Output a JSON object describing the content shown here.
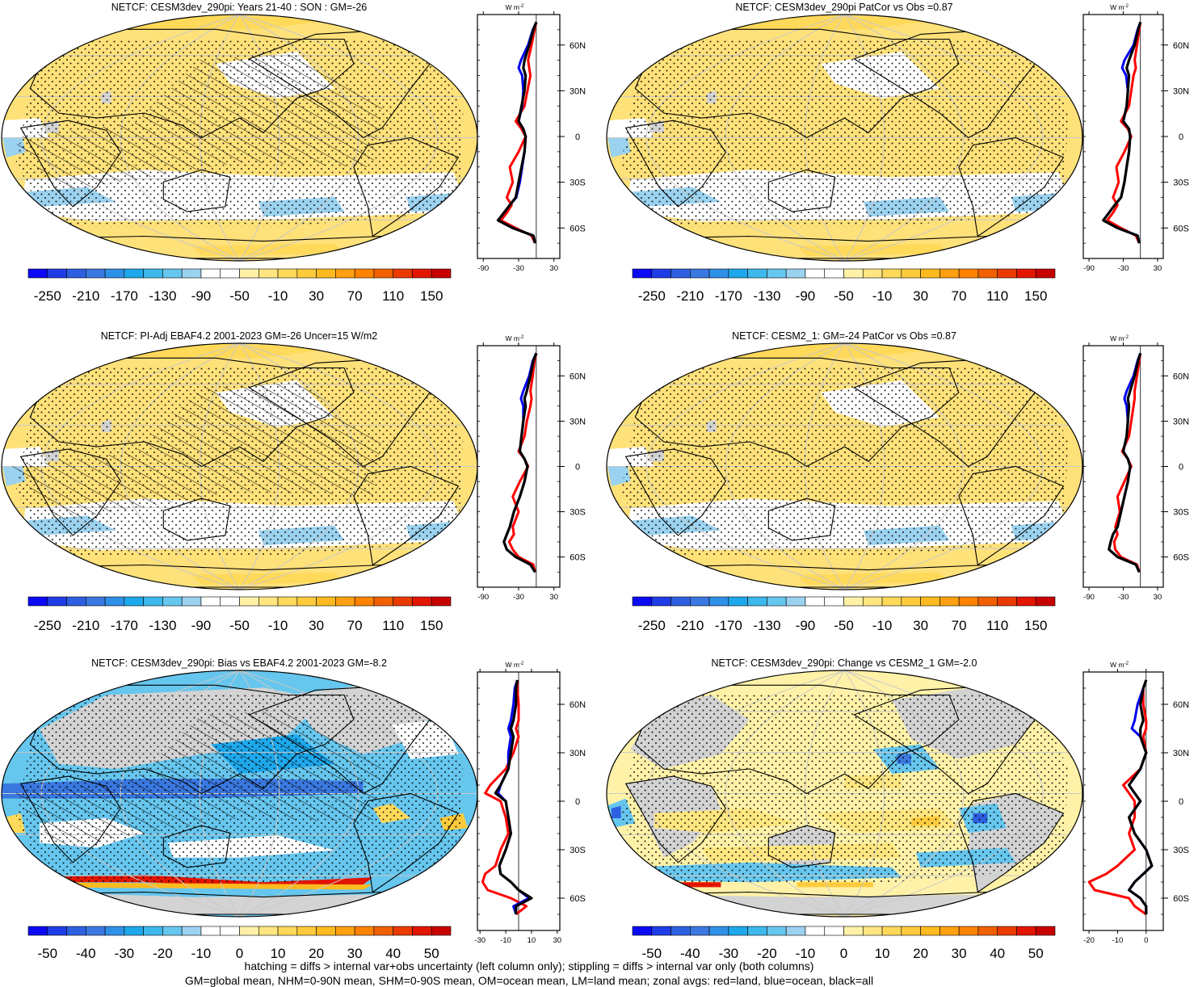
{
  "figure": {
    "footnotes": [
      "hatching = diffs > internal var+obs uncertainty (left column only); stippling = diffs > internal var only (both columns)",
      "GM=global mean, NHM=0-90N mean, SHM=0-90S mean, OM=ocean mean, LM=land mean; zonal avgs: red=land, blue=ocean, black=all"
    ]
  },
  "colorscales": {
    "full": {
      "colors": [
        "#0a0af5",
        "#1f3de6",
        "#2e5fe0",
        "#3a78e0",
        "#2f90e8",
        "#1ea8ec",
        "#3cb8ec",
        "#66c6ee",
        "#9bd2ef",
        "#ffffff",
        "#ffffff",
        "#fff2a8",
        "#ffe680",
        "#ffd95a",
        "#ffcb3c",
        "#ffba1f",
        "#ffa010",
        "#ff8200",
        "#f06000",
        "#ea3a00",
        "#e21500",
        "#c80000"
      ],
      "labels": [
        "-250",
        "-210",
        "-170",
        "-130",
        "-90",
        "-50",
        "-10",
        "30",
        "70",
        "110",
        "150"
      ]
    },
    "diff": {
      "colors": [
        "#0a0af5",
        "#1f3de6",
        "#2e5fe0",
        "#3a78e0",
        "#2f90e8",
        "#1ea8ec",
        "#3cb8ec",
        "#66c6ee",
        "#9bd2ef",
        "#ffffff",
        "#ffffff",
        "#fff2a8",
        "#ffe680",
        "#ffd95a",
        "#ffcb3c",
        "#ffba1f",
        "#ffa010",
        "#ff8200",
        "#f06000",
        "#ea3a00",
        "#e21500",
        "#c80000"
      ],
      "labels": [
        "-50",
        "-40",
        "-30",
        "-20",
        "-10",
        "0",
        "10",
        "20",
        "30",
        "40",
        "50"
      ]
    }
  },
  "chart_data": [
    {
      "type": "heatmap",
      "title": "NETCF: CESM3dev_290pi: Years 21-40 : SON : GM=-26",
      "scale": "full",
      "fill": "#ffe17a",
      "hatching": true,
      "stippling": true,
      "zonal_avg": {
        "unit": "W m-2",
        "xlim": [
          -100,
          40
        ],
        "xticks": [
          "-90",
          "-30",
          "30"
        ],
        "yticks": [
          "60N",
          "30N",
          "0",
          "30S",
          "60S"
        ],
        "lat": [
          75,
          70,
          60,
          50,
          45,
          40,
          30,
          20,
          10,
          5,
          0,
          -10,
          -20,
          -30,
          -40,
          -45,
          -50,
          -55,
          -60,
          -65,
          -70
        ],
        "all": [
          0,
          -5,
          -12,
          -20,
          -22,
          -18,
          -20,
          -25,
          -30,
          -22,
          -18,
          -20,
          -25,
          -30,
          -35,
          -45,
          -55,
          -65,
          -40,
          -5,
          -2
        ],
        "ocean": [
          0,
          -6,
          -14,
          -26,
          -30,
          -24,
          -22,
          -24,
          -30,
          -22,
          -18,
          -20,
          -24,
          -28,
          -34,
          -45,
          -55,
          -65,
          -40,
          -5,
          -2
        ],
        "land": [
          0,
          -3,
          -8,
          -14,
          -12,
          -10,
          -15,
          -20,
          -35,
          -25,
          -18,
          -30,
          -45,
          -40,
          -50,
          -42,
          -50,
          -60,
          -35,
          -8,
          -2
        ]
      }
    },
    {
      "type": "heatmap",
      "title": "NETCF: CESM3dev_290pi PatCor vs Obs =0.87",
      "scale": "full",
      "fill": "#ffe17a",
      "hatching": false,
      "stippling": true,
      "zonal_avg": {
        "unit": "W m-2",
        "xlim": [
          -100,
          40
        ],
        "xticks": [
          "-90",
          "-30",
          "30"
        ],
        "yticks": [
          "60N",
          "30N",
          "0",
          "30S",
          "60S"
        ],
        "lat": [
          75,
          70,
          60,
          50,
          45,
          40,
          30,
          20,
          10,
          5,
          0,
          -10,
          -20,
          -30,
          -40,
          -45,
          -50,
          -55,
          -60,
          -65,
          -70
        ],
        "all": [
          0,
          -4,
          -10,
          -20,
          -24,
          -20,
          -22,
          -24,
          -30,
          -20,
          -18,
          -20,
          -24,
          -28,
          -34,
          -45,
          -55,
          -65,
          -40,
          -5,
          -2
        ],
        "ocean": [
          0,
          -5,
          -12,
          -28,
          -32,
          -25,
          -22,
          -24,
          -30,
          -20,
          -18,
          -20,
          -24,
          -28,
          -34,
          -45,
          -55,
          -65,
          -40,
          -5,
          -2
        ],
        "land": [
          0,
          -2,
          -6,
          -10,
          -8,
          -12,
          -16,
          -20,
          -34,
          -22,
          -16,
          -28,
          -42,
          -38,
          -48,
          -40,
          -48,
          -58,
          -34,
          -8,
          -2
        ]
      }
    },
    {
      "type": "heatmap",
      "title": "NETCF: PI-Adj EBAF4.2 2001-2023 GM=-26 Uncer=15 W/m2",
      "scale": "full",
      "fill": "#ffe17a",
      "hatching": true,
      "stippling": true,
      "zonal_avg": {
        "unit": "W m-2",
        "xlim": [
          -100,
          40
        ],
        "xticks": [
          "-90",
          "-30",
          "30"
        ],
        "yticks": [
          "60N",
          "30N",
          "0",
          "30S",
          "60S"
        ],
        "lat": [
          75,
          70,
          60,
          50,
          45,
          40,
          30,
          20,
          10,
          5,
          0,
          -10,
          -20,
          -30,
          -40,
          -45,
          -50,
          -55,
          -60,
          -65,
          -70
        ],
        "all": [
          0,
          -5,
          -10,
          -16,
          -20,
          -18,
          -22,
          -25,
          -28,
          -20,
          -15,
          -20,
          -28,
          -38,
          -45,
          -50,
          -55,
          -50,
          -35,
          -10,
          -2
        ],
        "ocean": [
          0,
          -6,
          -12,
          -22,
          -26,
          -22,
          -22,
          -25,
          -28,
          -20,
          -15,
          -20,
          -28,
          -38,
          -45,
          -50,
          -55,
          -50,
          -35,
          -10,
          -2
        ],
        "land": [
          0,
          -3,
          -6,
          -10,
          -8,
          -10,
          -16,
          -20,
          -30,
          -20,
          -14,
          -28,
          -40,
          -30,
          -40,
          -38,
          -46,
          -40,
          -30,
          -5,
          -2
        ]
      }
    },
    {
      "type": "heatmap",
      "title": "NETCF: CESM2_1: GM=-24 PatCor vs Obs =0.87",
      "scale": "full",
      "fill": "#ffe17a",
      "hatching": false,
      "stippling": true,
      "zonal_avg": {
        "unit": "W m-2",
        "xlim": [
          -100,
          40
        ],
        "xticks": [
          "-90",
          "-30",
          "30"
        ],
        "yticks": [
          "60N",
          "30N",
          "0",
          "30S",
          "60S"
        ],
        "lat": [
          75,
          70,
          60,
          50,
          45,
          40,
          30,
          20,
          10,
          5,
          0,
          -10,
          -20,
          -30,
          -40,
          -45,
          -50,
          -55,
          -60,
          -65,
          -70
        ],
        "all": [
          0,
          -4,
          -10,
          -18,
          -22,
          -20,
          -22,
          -24,
          -30,
          -22,
          -18,
          -22,
          -28,
          -34,
          -40,
          -48,
          -52,
          -55,
          -40,
          -8,
          -2
        ],
        "ocean": [
          0,
          -5,
          -12,
          -24,
          -28,
          -24,
          -22,
          -24,
          -30,
          -22,
          -18,
          -22,
          -28,
          -34,
          -40,
          -48,
          -52,
          -55,
          -40,
          -8,
          -2
        ],
        "land": [
          0,
          -2,
          -6,
          -10,
          -10,
          -12,
          -16,
          -20,
          -32,
          -22,
          -16,
          -28,
          -40,
          -36,
          -44,
          -40,
          -46,
          -44,
          -34,
          -6,
          -2
        ]
      }
    },
    {
      "type": "heatmap",
      "title": "NETCF: CESM3dev_290pi: Bias vs EBAF4.2 2001-2023  GM=-8.2",
      "scale": "diff",
      "fill": "#66c6ee",
      "hatching": true,
      "stippling": true,
      "zonal_avg": {
        "unit": "W m-2",
        "xlim": [
          -32,
          32
        ],
        "xticks": [
          "-30",
          "-10",
          "10",
          "30"
        ],
        "yticks": [
          "60N",
          "30N",
          "0",
          "30S",
          "60S"
        ],
        "lat": [
          75,
          70,
          60,
          50,
          45,
          40,
          30,
          20,
          10,
          5,
          0,
          -10,
          -20,
          -30,
          -40,
          -45,
          -50,
          -55,
          -60,
          -65,
          -70
        ],
        "all": [
          -1,
          -2,
          -2,
          -4,
          -6,
          -4,
          -6,
          -8,
          -14,
          -18,
          -10,
          -8,
          -6,
          -10,
          -15,
          -14,
          -6,
          0,
          10,
          -2,
          -2
        ],
        "ocean": [
          -1,
          -3,
          -4,
          -6,
          -8,
          -6,
          -8,
          -8,
          -14,
          -16,
          -10,
          -8,
          -6,
          -10,
          -15,
          -14,
          -6,
          0,
          8,
          -4,
          -2
        ],
        "land": [
          -1,
          -1,
          0,
          0,
          -2,
          0,
          -4,
          -10,
          -22,
          -26,
          -14,
          -10,
          -8,
          -14,
          -18,
          -26,
          -28,
          -24,
          -6,
          6,
          -2
        ]
      }
    },
    {
      "type": "heatmap",
      "title": "NETCF: CESM3dev_290pi: Change vs CESM2_1 GM=-2.0",
      "scale": "diff",
      "fill": "#fff2a8",
      "hatching": false,
      "stippling": true,
      "zonal_avg": {
        "unit": "W m-2",
        "xlim": [
          -22,
          6
        ],
        "xticks": [
          "-20",
          "-10",
          "0"
        ],
        "yticks": [
          "60N",
          "30N",
          "0",
          "30S",
          "60S"
        ],
        "lat": [
          75,
          70,
          60,
          50,
          45,
          40,
          30,
          20,
          10,
          5,
          0,
          -10,
          -20,
          -30,
          -40,
          -45,
          -50,
          -55,
          -60,
          -65,
          -70
        ],
        "all": [
          0,
          -1,
          -2,
          -1,
          -2,
          -2,
          0,
          -2,
          -6,
          -4,
          -2,
          -6,
          -4,
          0,
          2,
          -1,
          -4,
          -6,
          -2,
          0,
          0
        ],
        "ocean": [
          0,
          -1,
          -3,
          -4,
          -5,
          -2,
          0,
          -2,
          -6,
          -4,
          -2,
          -6,
          -4,
          0,
          2,
          -1,
          -4,
          -6,
          -2,
          0,
          0
        ],
        "land": [
          0,
          -1,
          -1,
          0,
          0,
          -1,
          0,
          -2,
          -8,
          -6,
          -4,
          -4,
          -6,
          -4,
          -10,
          -14,
          -20,
          -18,
          -6,
          -4,
          0
        ]
      }
    }
  ]
}
